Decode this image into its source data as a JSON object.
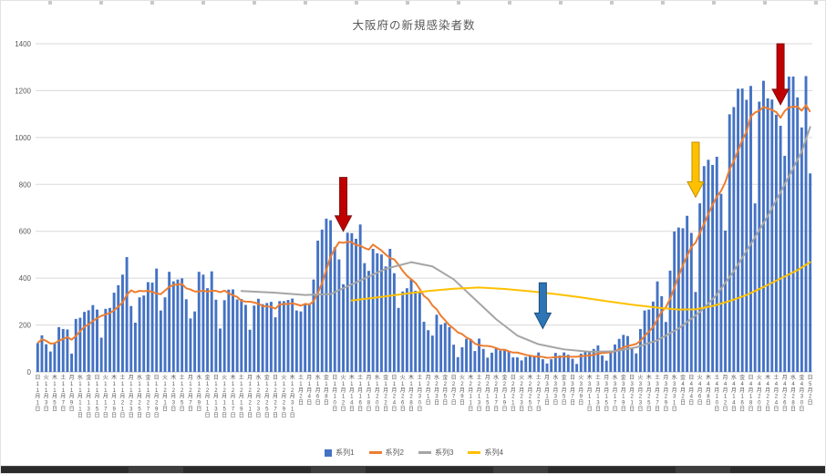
{
  "page": {
    "title": "大阪府の新規感染者数"
  },
  "chart_data": {
    "type": "combo",
    "title": "大阪府の新規感染者数",
    "ylim": [
      0,
      1400
    ],
    "y_ticks": [
      0,
      200,
      400,
      600,
      800,
      1000,
      1200,
      1400
    ],
    "grid": true,
    "legend_position": "bottom",
    "x_label_step_days": 2,
    "x_labels": [
      "日11月1日",
      "火11月3日",
      "木11月5日",
      "土11月7日",
      "月11月9日",
      "水11月11日",
      "金11月13日",
      "日11月15日",
      "火11月17日",
      "木11月19日",
      "土11月21日",
      "月11月23日",
      "水11月25日",
      "金11月27日",
      "日11月29日",
      "火12月1日",
      "木12月3日",
      "土12月5日",
      "月12月7日",
      "水12月9日",
      "金12月11日",
      "日12月13日",
      "火12月15日",
      "木12月17日",
      "土12月19日",
      "月12月21日",
      "水12月23日",
      "金12月25日",
      "日12月27日",
      "火12月29日",
      "木12月31日",
      "土1月2日",
      "月1月4日",
      "水1月6日",
      "金1月8日",
      "日1月10日",
      "火1月12日",
      "木1月14日",
      "土1月16日",
      "月1月18日",
      "水1月20日",
      "金1月22日",
      "日1月24日",
      "火1月26日",
      "木1月28日",
      "土1月30日",
      "月2月1日",
      "水2月3日",
      "金2月5日",
      "日2月7日",
      "火2月9日",
      "木2月11日",
      "土2月13日",
      "月2月15日",
      "水2月17日",
      "金2月19日",
      "日2月21日",
      "火2月23日",
      "木2月25日",
      "土2月27日",
      "月3月1日",
      "水3月3日",
      "金3月5日",
      "日3月7日",
      "火3月9日",
      "木3月11日",
      "土3月13日",
      "月3月15日",
      "水3月17日",
      "金3月19日",
      "日3月21日",
      "火3月23日",
      "木3月25日",
      "土3月27日",
      "月3月29日",
      "水3月31日",
      "金4月2日",
      "日4月4日",
      "火4月6日",
      "木4月8日",
      "土4月10日",
      "月4月12日",
      "水4月14日",
      "金4月16日",
      "日4月18日",
      "火4月20日",
      "木4月22日",
      "土4月24日",
      "月4月26日",
      "水4月28日",
      "金4月30日",
      "日5月2日"
    ],
    "series": [
      {
        "name": "系列1",
        "type": "bar",
        "color": "#4472C4",
        "values": [
          123,
          156,
          118,
          87,
          125,
          191,
          183,
          181,
          78,
          226,
          231,
          256,
          263,
          285,
          266,
          146,
          269,
          273,
          338,
          370,
          415,
          490,
          281,
          210,
          318,
          326,
          383,
          381,
          441,
          262,
          318,
          427,
          386,
          394,
          399,
          310,
          228,
          258,
          427,
          415,
          357,
          429,
          308,
          185,
          306,
          351,
          352,
          309,
          311,
          286,
          180,
          283,
          312,
          289,
          294,
          299,
          233,
          302,
          302,
          307,
          313,
          262,
          258,
          286,
          286,
          394,
          560,
          607,
          654,
          647,
          532,
          480,
          374,
          594,
          592,
          568,
          629,
          464,
          431,
          525,
          506,
          501,
          450,
          525,
          421,
          273,
          343,
          357,
          397,
          346,
          338,
          214,
          178,
          155,
          244,
          202,
          209,
          191,
          116,
          63,
          105,
          141,
          141,
          89,
          142,
          98,
          61,
          82,
          100,
          91,
          91,
          90,
          62,
          62,
          49,
          64,
          67,
          69,
          83,
          54,
          36,
          54,
          81,
          70,
          83,
          73,
          56,
          34,
          78,
          84,
          85,
          98,
          113,
          70,
          48,
          86,
          117,
          141,
          158,
          153,
          100,
          79,
          183,
          262,
          266,
          300,
          386,
          323,
          213,
          432,
          599,
          616,
          613,
          666,
          593,
          341,
          719,
          878,
          905,
          883,
          918,
          760,
          603,
          1099,
          1130,
          1208,
          1209,
          1161,
          1220,
          719,
          1153,
          1242,
          1167,
          1162,
          1097,
          1050,
          922,
          1260,
          1260,
          1171,
          1043,
          1262,
          847
        ]
      },
      {
        "name": "系列2",
        "type": "line",
        "color": "#ED7D31",
        "derived_from": "系列1",
        "derivation": "moving_average",
        "window": 7
      },
      {
        "name": "系列3",
        "type": "line",
        "color": "#A5A5A5",
        "points": [
          [
            48,
            345
          ],
          [
            56,
            338
          ],
          [
            63,
            328
          ],
          [
            69,
            332
          ],
          [
            76,
            390
          ],
          [
            82,
            440
          ],
          [
            88,
            468
          ],
          [
            93,
            450
          ],
          [
            98,
            395
          ],
          [
            103,
            310
          ],
          [
            108,
            225
          ],
          [
            113,
            155
          ],
          [
            118,
            118
          ],
          [
            124,
            96
          ],
          [
            130,
            86
          ],
          [
            136,
            88
          ],
          [
            141,
            105
          ],
          [
            146,
            135
          ],
          [
            151,
            185
          ],
          [
            156,
            255
          ],
          [
            160,
            330
          ],
          [
            164,
            430
          ],
          [
            168,
            545
          ],
          [
            172,
            665
          ],
          [
            176,
            800
          ],
          [
            180,
            940
          ],
          [
            182,
            1045
          ]
        ]
      },
      {
        "name": "系列4",
        "type": "line",
        "color": "#FFC000",
        "points": [
          [
            74,
            305
          ],
          [
            80,
            318
          ],
          [
            86,
            332
          ],
          [
            92,
            345
          ],
          [
            98,
            355
          ],
          [
            104,
            360
          ],
          [
            110,
            354
          ],
          [
            116,
            344
          ],
          [
            122,
            332
          ],
          [
            128,
            318
          ],
          [
            134,
            302
          ],
          [
            140,
            287
          ],
          [
            146,
            274
          ],
          [
            151,
            266
          ],
          [
            155,
            267
          ],
          [
            159,
            281
          ],
          [
            163,
            302
          ],
          [
            167,
            328
          ],
          [
            171,
            362
          ],
          [
            175,
            398
          ],
          [
            179,
            434
          ],
          [
            182,
            468
          ]
        ]
      }
    ],
    "annotations": [
      {
        "shape": "down-arrow",
        "color": "#C00000",
        "stroke": "#7F1010",
        "day": 72,
        "value_top": 830,
        "value_tip": 600
      },
      {
        "shape": "down-arrow",
        "color": "#2E75B6",
        "stroke": "#1F4E79",
        "day": 119,
        "value_top": 380,
        "value_tip": 185
      },
      {
        "shape": "down-arrow",
        "color": "#FFC000",
        "stroke": "#BF9000",
        "day": 155,
        "value_top": 980,
        "value_tip": 745
      },
      {
        "shape": "down-arrow",
        "color": "#C00000",
        "stroke": "#7F1010",
        "day": 175,
        "value_top": 1400,
        "value_tip": 1140
      }
    ],
    "axis_colors": {
      "grid": "#D9D9D9",
      "axis_line": "#BFBFBF",
      "tick_label": "#595959"
    }
  },
  "legend": {
    "items": [
      {
        "label": "系列1",
        "color": "#4472C4",
        "marker": "bar"
      },
      {
        "label": "系列2",
        "color": "#ED7D31",
        "marker": "line"
      },
      {
        "label": "系列3",
        "color": "#A5A5A5",
        "marker": "line"
      },
      {
        "label": "系列4",
        "color": "#FFC000",
        "marker": "line"
      }
    ]
  }
}
